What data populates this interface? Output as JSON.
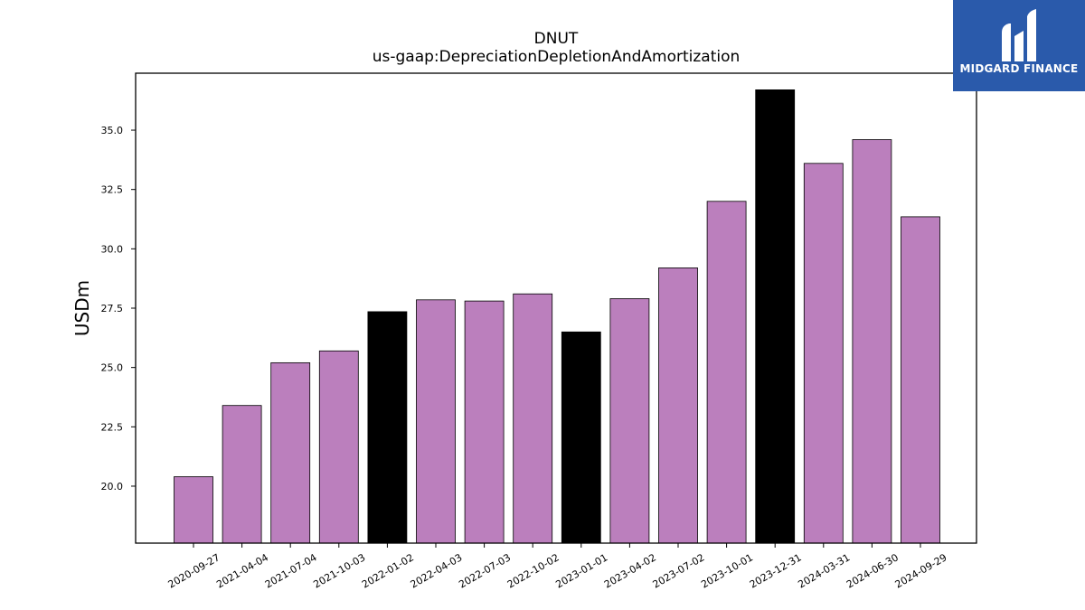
{
  "logo": {
    "text": "MIDGARD FINANCE",
    "background": "#2a5aab",
    "icon": "midgard-logo-icon"
  },
  "chart_data": {
    "type": "bar",
    "title": "DNUT",
    "subtitle": "us-gaap:DepreciationDepletionAndAmortization",
    "xlabel": "",
    "ylabel": "USDm",
    "ylim": [
      17.6,
      37.4
    ],
    "yticks": [
      "20.0",
      "22.5",
      "25.0",
      "27.5",
      "30.0",
      "32.5",
      "35.0"
    ],
    "grid": false,
    "colors": {
      "default": "#bb7fbd",
      "highlight": "#000000",
      "edge": "#000000"
    },
    "categories": [
      "2020-09-27",
      "2021-04-04",
      "2021-07-04",
      "2021-10-03",
      "2022-01-02",
      "2022-04-03",
      "2022-07-03",
      "2022-10-02",
      "2023-01-01",
      "2023-04-02",
      "2023-07-02",
      "2023-10-01",
      "2023-12-31",
      "2024-03-31",
      "2024-06-30",
      "2024-09-29"
    ],
    "values": [
      20.4,
      23.4,
      25.2,
      25.7,
      27.35,
      27.85,
      27.8,
      28.1,
      26.5,
      27.9,
      29.2,
      32.0,
      36.7,
      33.6,
      34.6,
      31.35
    ],
    "highlighted": [
      false,
      false,
      false,
      false,
      true,
      false,
      false,
      false,
      true,
      false,
      false,
      false,
      true,
      false,
      false,
      false
    ]
  }
}
